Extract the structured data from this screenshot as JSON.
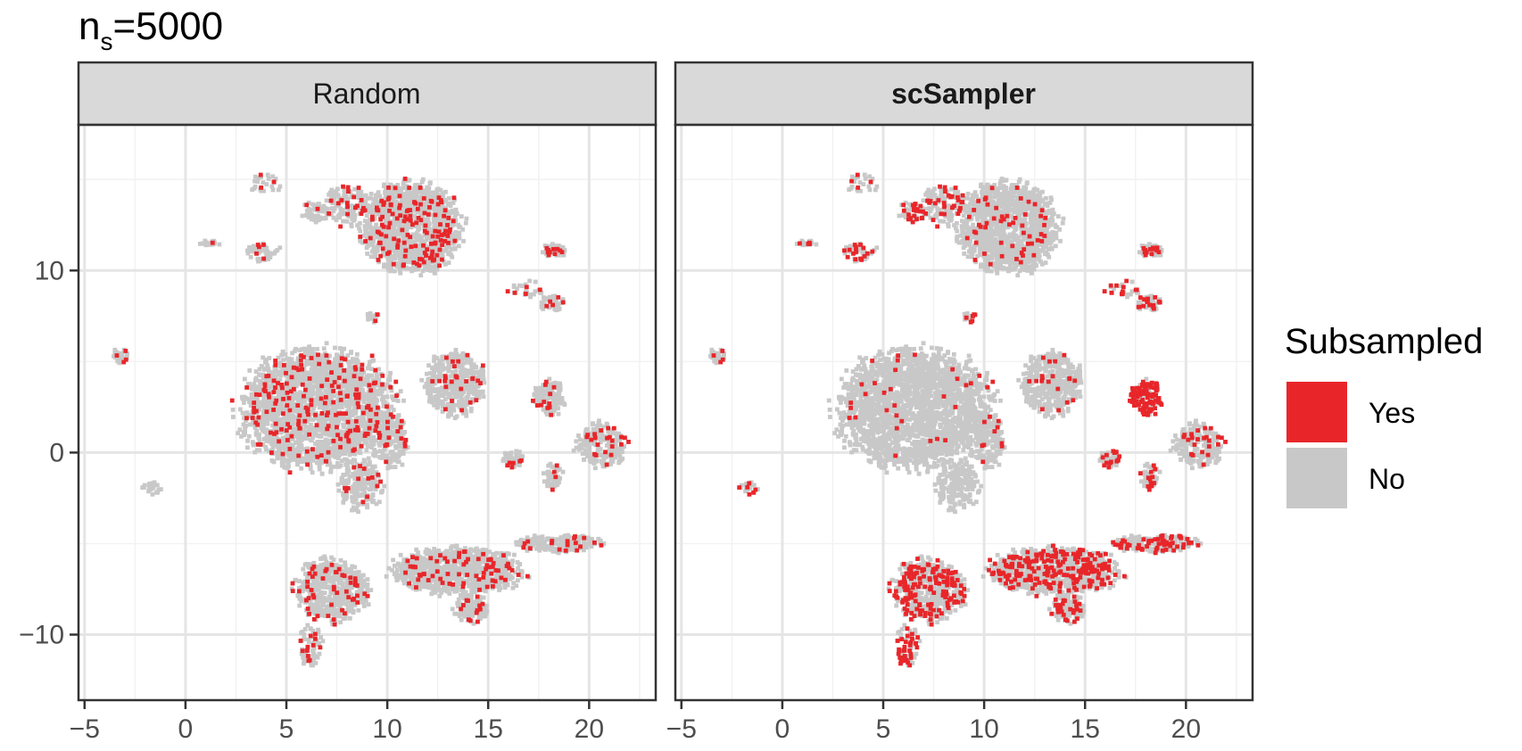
{
  "chart_data": {
    "type": "scatter",
    "title": "n",
    "title_subscript": "s",
    "title_suffix": "=5000",
    "facets": [
      "Random",
      "scSampler"
    ],
    "facet_bold": [
      false,
      true
    ],
    "x_ticks": [
      -5,
      0,
      5,
      10,
      15,
      20
    ],
    "x_tick_labels": [
      "−5",
      "0",
      "5",
      "10",
      "15",
      "20"
    ],
    "y_ticks": [
      -10,
      0,
      10
    ],
    "y_tick_labels": [
      "−10",
      "0",
      "10"
    ],
    "xlim": [
      -5.3,
      23.3
    ],
    "ylim": [
      -13.6,
      18.0
    ],
    "grid": true,
    "legend": {
      "title": "Subsampled",
      "position": "right",
      "entries": [
        {
          "label": "Yes",
          "color": "#e8262a"
        },
        {
          "label": "No",
          "color": "#c8c8c8"
        }
      ]
    },
    "clusters": [
      {
        "cx": 6.6,
        "cy": 2.4,
        "rx": 4.0,
        "ry": 3.4,
        "n": 2200,
        "sampled_frac": [
          0.09,
          0.01
        ]
      },
      {
        "cx": 8.7,
        "cy": -1.8,
        "rx": 1.2,
        "ry": 1.5,
        "n": 180,
        "sampled_frac": [
          0.08,
          0.02
        ]
      },
      {
        "cx": 10.2,
        "cy": 0.6,
        "rx": 0.8,
        "ry": 1.6,
        "n": 150,
        "sampled_frac": [
          0.08,
          0.05
        ]
      },
      {
        "cx": 11.2,
        "cy": 12.4,
        "rx": 2.6,
        "ry": 2.6,
        "n": 1200,
        "sampled_frac": [
          0.1,
          0.04
        ]
      },
      {
        "cx": 8.0,
        "cy": 13.6,
        "rx": 1.1,
        "ry": 1.2,
        "n": 130,
        "sampled_frac": [
          0.1,
          0.22
        ]
      },
      {
        "cx": 6.5,
        "cy": 13.2,
        "rx": 0.7,
        "ry": 0.6,
        "n": 60,
        "sampled_frac": [
          0.1,
          0.3
        ]
      },
      {
        "cx": 13.3,
        "cy": 3.8,
        "rx": 1.6,
        "ry": 1.8,
        "n": 420,
        "sampled_frac": [
          0.08,
          0.05
        ]
      },
      {
        "cx": 18.0,
        "cy": 3.0,
        "rx": 0.8,
        "ry": 1.0,
        "n": 140,
        "sampled_frac": [
          0.08,
          0.7
        ]
      },
      {
        "cx": 20.6,
        "cy": 0.4,
        "rx": 1.3,
        "ry": 1.3,
        "n": 220,
        "sampled_frac": [
          0.08,
          0.1
        ]
      },
      {
        "cx": 16.2,
        "cy": -0.4,
        "rx": 0.6,
        "ry": 0.5,
        "n": 50,
        "sampled_frac": [
          0.1,
          0.28
        ]
      },
      {
        "cx": 18.2,
        "cy": -1.3,
        "rx": 0.5,
        "ry": 0.7,
        "n": 50,
        "sampled_frac": [
          0.1,
          0.28
        ]
      },
      {
        "cx": 18.3,
        "cy": 11.1,
        "rx": 0.6,
        "ry": 0.4,
        "n": 60,
        "sampled_frac": [
          0.1,
          0.12
        ]
      },
      {
        "cx": 18.2,
        "cy": 8.2,
        "rx": 0.6,
        "ry": 0.5,
        "n": 55,
        "sampled_frac": [
          0.1,
          0.25
        ]
      },
      {
        "cx": 16.8,
        "cy": 9.0,
        "rx": 1.0,
        "ry": 0.5,
        "n": 25,
        "sampled_frac": [
          0.1,
          0.3
        ]
      },
      {
        "cx": 7.3,
        "cy": -7.5,
        "rx": 1.9,
        "ry": 1.8,
        "n": 500,
        "sampled_frac": [
          0.1,
          0.28
        ]
      },
      {
        "cx": 6.2,
        "cy": -10.6,
        "rx": 0.6,
        "ry": 1.2,
        "n": 70,
        "sampled_frac": [
          0.1,
          0.4
        ]
      },
      {
        "cx": 13.5,
        "cy": -6.5,
        "rx": 3.4,
        "ry": 1.3,
        "n": 900,
        "sampled_frac": [
          0.1,
          0.24
        ]
      },
      {
        "cx": 14.2,
        "cy": -8.6,
        "rx": 0.9,
        "ry": 0.8,
        "n": 110,
        "sampled_frac": [
          0.1,
          0.24
        ]
      },
      {
        "cx": 18.5,
        "cy": -5.0,
        "rx": 2.2,
        "ry": 0.5,
        "n": 180,
        "sampled_frac": [
          0.1,
          0.3
        ]
      },
      {
        "cx": 3.8,
        "cy": 11.0,
        "rx": 0.9,
        "ry": 0.6,
        "n": 45,
        "sampled_frac": [
          0.08,
          0.3
        ]
      },
      {
        "cx": 1.2,
        "cy": 11.5,
        "rx": 0.6,
        "ry": 0.15,
        "n": 20,
        "sampled_frac": [
          0.08,
          0.3
        ]
      },
      {
        "cx": 4.0,
        "cy": 14.8,
        "rx": 0.9,
        "ry": 0.5,
        "n": 25,
        "sampled_frac": [
          0.1,
          0.2
        ]
      },
      {
        "cx": -3.2,
        "cy": 5.3,
        "rx": 0.4,
        "ry": 0.5,
        "n": 30,
        "sampled_frac": [
          0.05,
          0.08
        ]
      },
      {
        "cx": -1.6,
        "cy": -2.0,
        "rx": 0.6,
        "ry": 0.35,
        "n": 20,
        "sampled_frac": [
          0.08,
          0.3
        ]
      },
      {
        "cx": 9.3,
        "cy": 7.4,
        "rx": 0.4,
        "ry": 0.4,
        "n": 15,
        "sampled_frac": [
          0.1,
          0.3
        ]
      }
    ]
  }
}
